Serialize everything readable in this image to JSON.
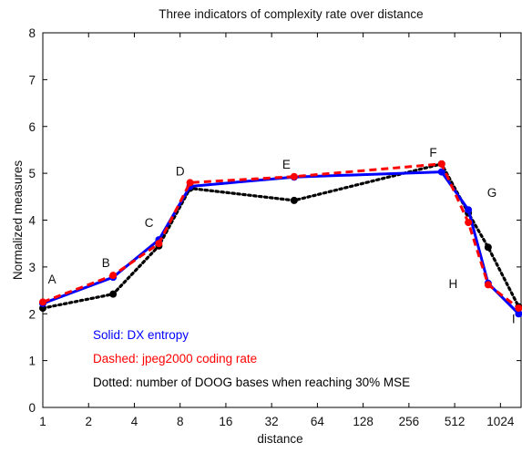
{
  "chart_data": {
    "type": "line",
    "title": "Three indicators of complexity rate over distance",
    "xlabel": "distance",
    "ylabel": "Normalized measures",
    "xscale": "log2",
    "xlim": [
      1,
      1400
    ],
    "ylim": [
      0,
      8
    ],
    "xticks": [
      1,
      2,
      4,
      8,
      16,
      32,
      64,
      128,
      256,
      512,
      1024
    ],
    "xtick_labels": [
      "1",
      "2",
      "4",
      "8",
      "16",
      "32",
      "64",
      "128",
      "256",
      "512",
      "1024"
    ],
    "yticks": [
      0,
      1,
      2,
      3,
      4,
      5,
      6,
      7,
      8
    ],
    "ytick_labels": [
      "0",
      "1",
      "2",
      "3",
      "4",
      "5",
      "6",
      "7",
      "8"
    ],
    "grid": false,
    "series": [
      {
        "name": "Solid: DX entropy",
        "style": "solid",
        "color": "#0000ff",
        "x": [
          1,
          2.9,
          5.8,
          9.3,
          45,
          420,
          630,
          850,
          1350
        ],
        "y": [
          2.22,
          2.78,
          3.58,
          4.72,
          4.92,
          5.03,
          4.22,
          2.65,
          2.0
        ]
      },
      {
        "name": "Dashed: jpeg2000 coding rate",
        "style": "dashed",
        "color": "#ff0000",
        "x": [
          1,
          2.9,
          5.8,
          9.3,
          45,
          420,
          630,
          850,
          1350
        ],
        "y": [
          2.25,
          2.82,
          3.5,
          4.8,
          4.93,
          5.2,
          3.95,
          2.62,
          2.12
        ]
      },
      {
        "name": "Dotted: number of DOOG bases when reaching 30% MSE",
        "style": "dotted",
        "color": "#000000",
        "x": [
          1,
          2.9,
          5.8,
          9.3,
          45,
          420,
          630,
          850,
          1350
        ],
        "y": [
          2.12,
          2.42,
          3.45,
          4.68,
          4.42,
          5.2,
          4.15,
          3.42,
          2.15
        ]
      }
    ],
    "point_labels": [
      {
        "text": "A",
        "x": 1.15,
        "y": 2.65
      },
      {
        "text": "B",
        "x": 2.6,
        "y": 3.0
      },
      {
        "text": "C",
        "x": 5.0,
        "y": 3.85
      },
      {
        "text": "D",
        "x": 8.0,
        "y": 4.95
      },
      {
        "text": "E",
        "x": 40,
        "y": 5.1
      },
      {
        "text": "F",
        "x": 370,
        "y": 5.35
      },
      {
        "text": "G",
        "x": 900,
        "y": 4.5
      },
      {
        "text": "H",
        "x": 500,
        "y": 2.55
      },
      {
        "text": "I",
        "x": 1250,
        "y": 1.8
      }
    ],
    "legend": {
      "placement": "bottom-left",
      "entries": [
        {
          "text": "Solid: DX entropy",
          "color": "#0000ff"
        },
        {
          "text": "Dashed: jpeg2000 coding rate",
          "color": "#ff0000"
        },
        {
          "text": "Dotted: number of DOOG bases when reaching 30% MSE",
          "color": "#000000"
        }
      ]
    }
  }
}
